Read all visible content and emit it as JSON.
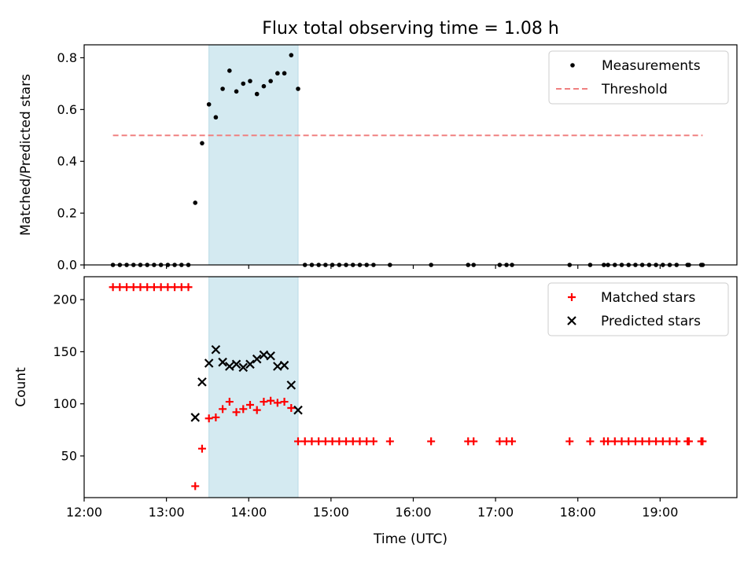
{
  "chart_data": [
    {
      "type": "scatter",
      "title": "Flux total observing time = 1.08 h",
      "xlabel": "",
      "ylabel": "Matched/Predicted stars",
      "xlim": [
        "12:00",
        "19:56"
      ],
      "ylim": [
        0.0,
        0.85
      ],
      "yticks": [
        0.0,
        0.2,
        0.4,
        0.6,
        0.8
      ],
      "ytick_labels": [
        "0.0",
        "0.2",
        "0.4",
        "0.6",
        "0.8"
      ],
      "xticks": [
        "12:00",
        "13:00",
        "14:00",
        "15:00",
        "16:00",
        "17:00",
        "18:00",
        "19:00"
      ],
      "show_xtick_labels": false,
      "grid": false,
      "legend_position": "top-right",
      "shaded_span": {
        "x_start": "13:31",
        "x_end": "14:36",
        "color": "#d4eaf1"
      },
      "series": [
        {
          "name": "Measurements",
          "marker": "dot",
          "color": "#000000",
          "points": [
            [
              "12:21",
              0.0
            ],
            [
              "12:26",
              0.0
            ],
            [
              "12:31",
              0.0
            ],
            [
              "12:36",
              0.0
            ],
            [
              "12:41",
              0.0
            ],
            [
              "12:46",
              0.0
            ],
            [
              "12:51",
              0.0
            ],
            [
              "12:56",
              0.0
            ],
            [
              "13:01",
              0.0
            ],
            [
              "13:06",
              0.0
            ],
            [
              "13:11",
              0.0
            ],
            [
              "13:16",
              0.0
            ],
            [
              "13:21",
              0.24
            ],
            [
              "13:26",
              0.47
            ],
            [
              "13:31",
              0.62
            ],
            [
              "13:36",
              0.57
            ],
            [
              "13:41",
              0.68
            ],
            [
              "13:46",
              0.75
            ],
            [
              "13:51",
              0.67
            ],
            [
              "13:56",
              0.7
            ],
            [
              "14:01",
              0.71
            ],
            [
              "14:06",
              0.66
            ],
            [
              "14:11",
              0.69
            ],
            [
              "14:16",
              0.71
            ],
            [
              "14:21",
              0.74
            ],
            [
              "14:26",
              0.74
            ],
            [
              "14:31",
              0.81
            ],
            [
              "14:36",
              0.68
            ],
            [
              "14:41",
              0.0
            ],
            [
              "14:46",
              0.0
            ],
            [
              "14:51",
              0.0
            ],
            [
              "14:56",
              0.0
            ],
            [
              "15:01",
              0.0
            ],
            [
              "15:06",
              0.0
            ],
            [
              "15:11",
              0.0
            ],
            [
              "15:16",
              0.0
            ],
            [
              "15:21",
              0.0
            ],
            [
              "15:26",
              0.0
            ],
            [
              "15:31",
              0.0
            ],
            [
              "15:43",
              0.0
            ],
            [
              "16:13",
              0.0
            ],
            [
              "16:40",
              0.0
            ],
            [
              "16:44",
              0.0
            ],
            [
              "17:03",
              0.0
            ],
            [
              "17:08",
              0.0
            ],
            [
              "17:12",
              0.0
            ],
            [
              "17:54",
              0.0
            ],
            [
              "18:09",
              0.0
            ],
            [
              "18:19",
              0.0
            ],
            [
              "18:22",
              0.0
            ],
            [
              "18:27",
              0.0
            ],
            [
              "18:32",
              0.0
            ],
            [
              "18:37",
              0.0
            ],
            [
              "18:42",
              0.0
            ],
            [
              "18:47",
              0.0
            ],
            [
              "18:52",
              0.0
            ],
            [
              "18:57",
              0.0
            ],
            [
              "19:02",
              0.0
            ],
            [
              "19:07",
              0.0
            ],
            [
              "19:12",
              0.0
            ],
            [
              "19:20",
              0.0
            ],
            [
              "19:21",
              0.0
            ],
            [
              "19:30",
              0.0
            ],
            [
              "19:31",
              0.0
            ]
          ]
        },
        {
          "name": "Threshold",
          "marker": "dashed-line",
          "color": "#f08080",
          "points": [
            [
              "12:21",
              0.5
            ],
            [
              "19:31",
              0.5
            ]
          ]
        }
      ]
    },
    {
      "type": "scatter",
      "title": "",
      "xlabel": "Time (UTC)",
      "ylabel": "Count",
      "xlim": [
        "12:00",
        "19:56"
      ],
      "ylim": [
        10,
        222
      ],
      "yticks": [
        50,
        100,
        150,
        200
      ],
      "ytick_labels": [
        "50",
        "100",
        "150",
        "200"
      ],
      "xticks": [
        "12:00",
        "13:00",
        "14:00",
        "15:00",
        "16:00",
        "17:00",
        "18:00",
        "19:00"
      ],
      "xtick_labels": [
        "12:00",
        "13:00",
        "14:00",
        "15:00",
        "16:00",
        "17:00",
        "18:00",
        "19:00"
      ],
      "show_xtick_labels": true,
      "grid": false,
      "legend_position": "top-right",
      "shaded_span": {
        "x_start": "13:31",
        "x_end": "14:36",
        "color": "#d4eaf1"
      },
      "series": [
        {
          "name": "Matched stars",
          "marker": "plus",
          "color": "#ff0000",
          "points": [
            [
              "12:21",
              212
            ],
            [
              "12:26",
              212
            ],
            [
              "12:31",
              212
            ],
            [
              "12:36",
              212
            ],
            [
              "12:41",
              212
            ],
            [
              "12:46",
              212
            ],
            [
              "12:51",
              212
            ],
            [
              "12:56",
              212
            ],
            [
              "13:01",
              212
            ],
            [
              "13:06",
              212
            ],
            [
              "13:11",
              212
            ],
            [
              "13:16",
              212
            ],
            [
              "13:21",
              21
            ],
            [
              "13:26",
              57
            ],
            [
              "13:31",
              86
            ],
            [
              "13:36",
              87
            ],
            [
              "13:41",
              95
            ],
            [
              "13:46",
              102
            ],
            [
              "13:51",
              92
            ],
            [
              "13:56",
              95
            ],
            [
              "14:01",
              99
            ],
            [
              "14:06",
              94
            ],
            [
              "14:11",
              102
            ],
            [
              "14:16",
              103
            ],
            [
              "14:21",
              101
            ],
            [
              "14:26",
              102
            ],
            [
              "14:31",
              96
            ],
            [
              "14:36",
              64
            ],
            [
              "14:41",
              64
            ],
            [
              "14:46",
              64
            ],
            [
              "14:51",
              64
            ],
            [
              "14:56",
              64
            ],
            [
              "15:01",
              64
            ],
            [
              "15:06",
              64
            ],
            [
              "15:11",
              64
            ],
            [
              "15:16",
              64
            ],
            [
              "15:21",
              64
            ],
            [
              "15:26",
              64
            ],
            [
              "15:31",
              64
            ],
            [
              "15:43",
              64
            ],
            [
              "16:13",
              64
            ],
            [
              "16:40",
              64
            ],
            [
              "16:44",
              64
            ],
            [
              "17:03",
              64
            ],
            [
              "17:08",
              64
            ],
            [
              "17:12",
              64
            ],
            [
              "17:54",
              64
            ],
            [
              "18:09",
              64
            ],
            [
              "18:19",
              64
            ],
            [
              "18:22",
              64
            ],
            [
              "18:27",
              64
            ],
            [
              "18:32",
              64
            ],
            [
              "18:37",
              64
            ],
            [
              "18:42",
              64
            ],
            [
              "18:47",
              64
            ],
            [
              "18:52",
              64
            ],
            [
              "18:57",
              64
            ],
            [
              "19:02",
              64
            ],
            [
              "19:07",
              64
            ],
            [
              "19:12",
              64
            ],
            [
              "19:20",
              64
            ],
            [
              "19:21",
              64
            ],
            [
              "19:30",
              64
            ],
            [
              "19:31",
              64
            ]
          ]
        },
        {
          "name": "Predicted stars",
          "marker": "x",
          "color": "#000000",
          "points": [
            [
              "13:21",
              87
            ],
            [
              "13:26",
              121
            ],
            [
              "13:31",
              139
            ],
            [
              "13:36",
              152
            ],
            [
              "13:41",
              140
            ],
            [
              "13:46",
              136
            ],
            [
              "13:51",
              138
            ],
            [
              "13:56",
              135
            ],
            [
              "14:01",
              138
            ],
            [
              "14:06",
              143
            ],
            [
              "14:11",
              147
            ],
            [
              "14:16",
              146
            ],
            [
              "14:21",
              136
            ],
            [
              "14:26",
              137
            ],
            [
              "14:31",
              118
            ],
            [
              "14:36",
              94
            ]
          ]
        }
      ]
    }
  ]
}
